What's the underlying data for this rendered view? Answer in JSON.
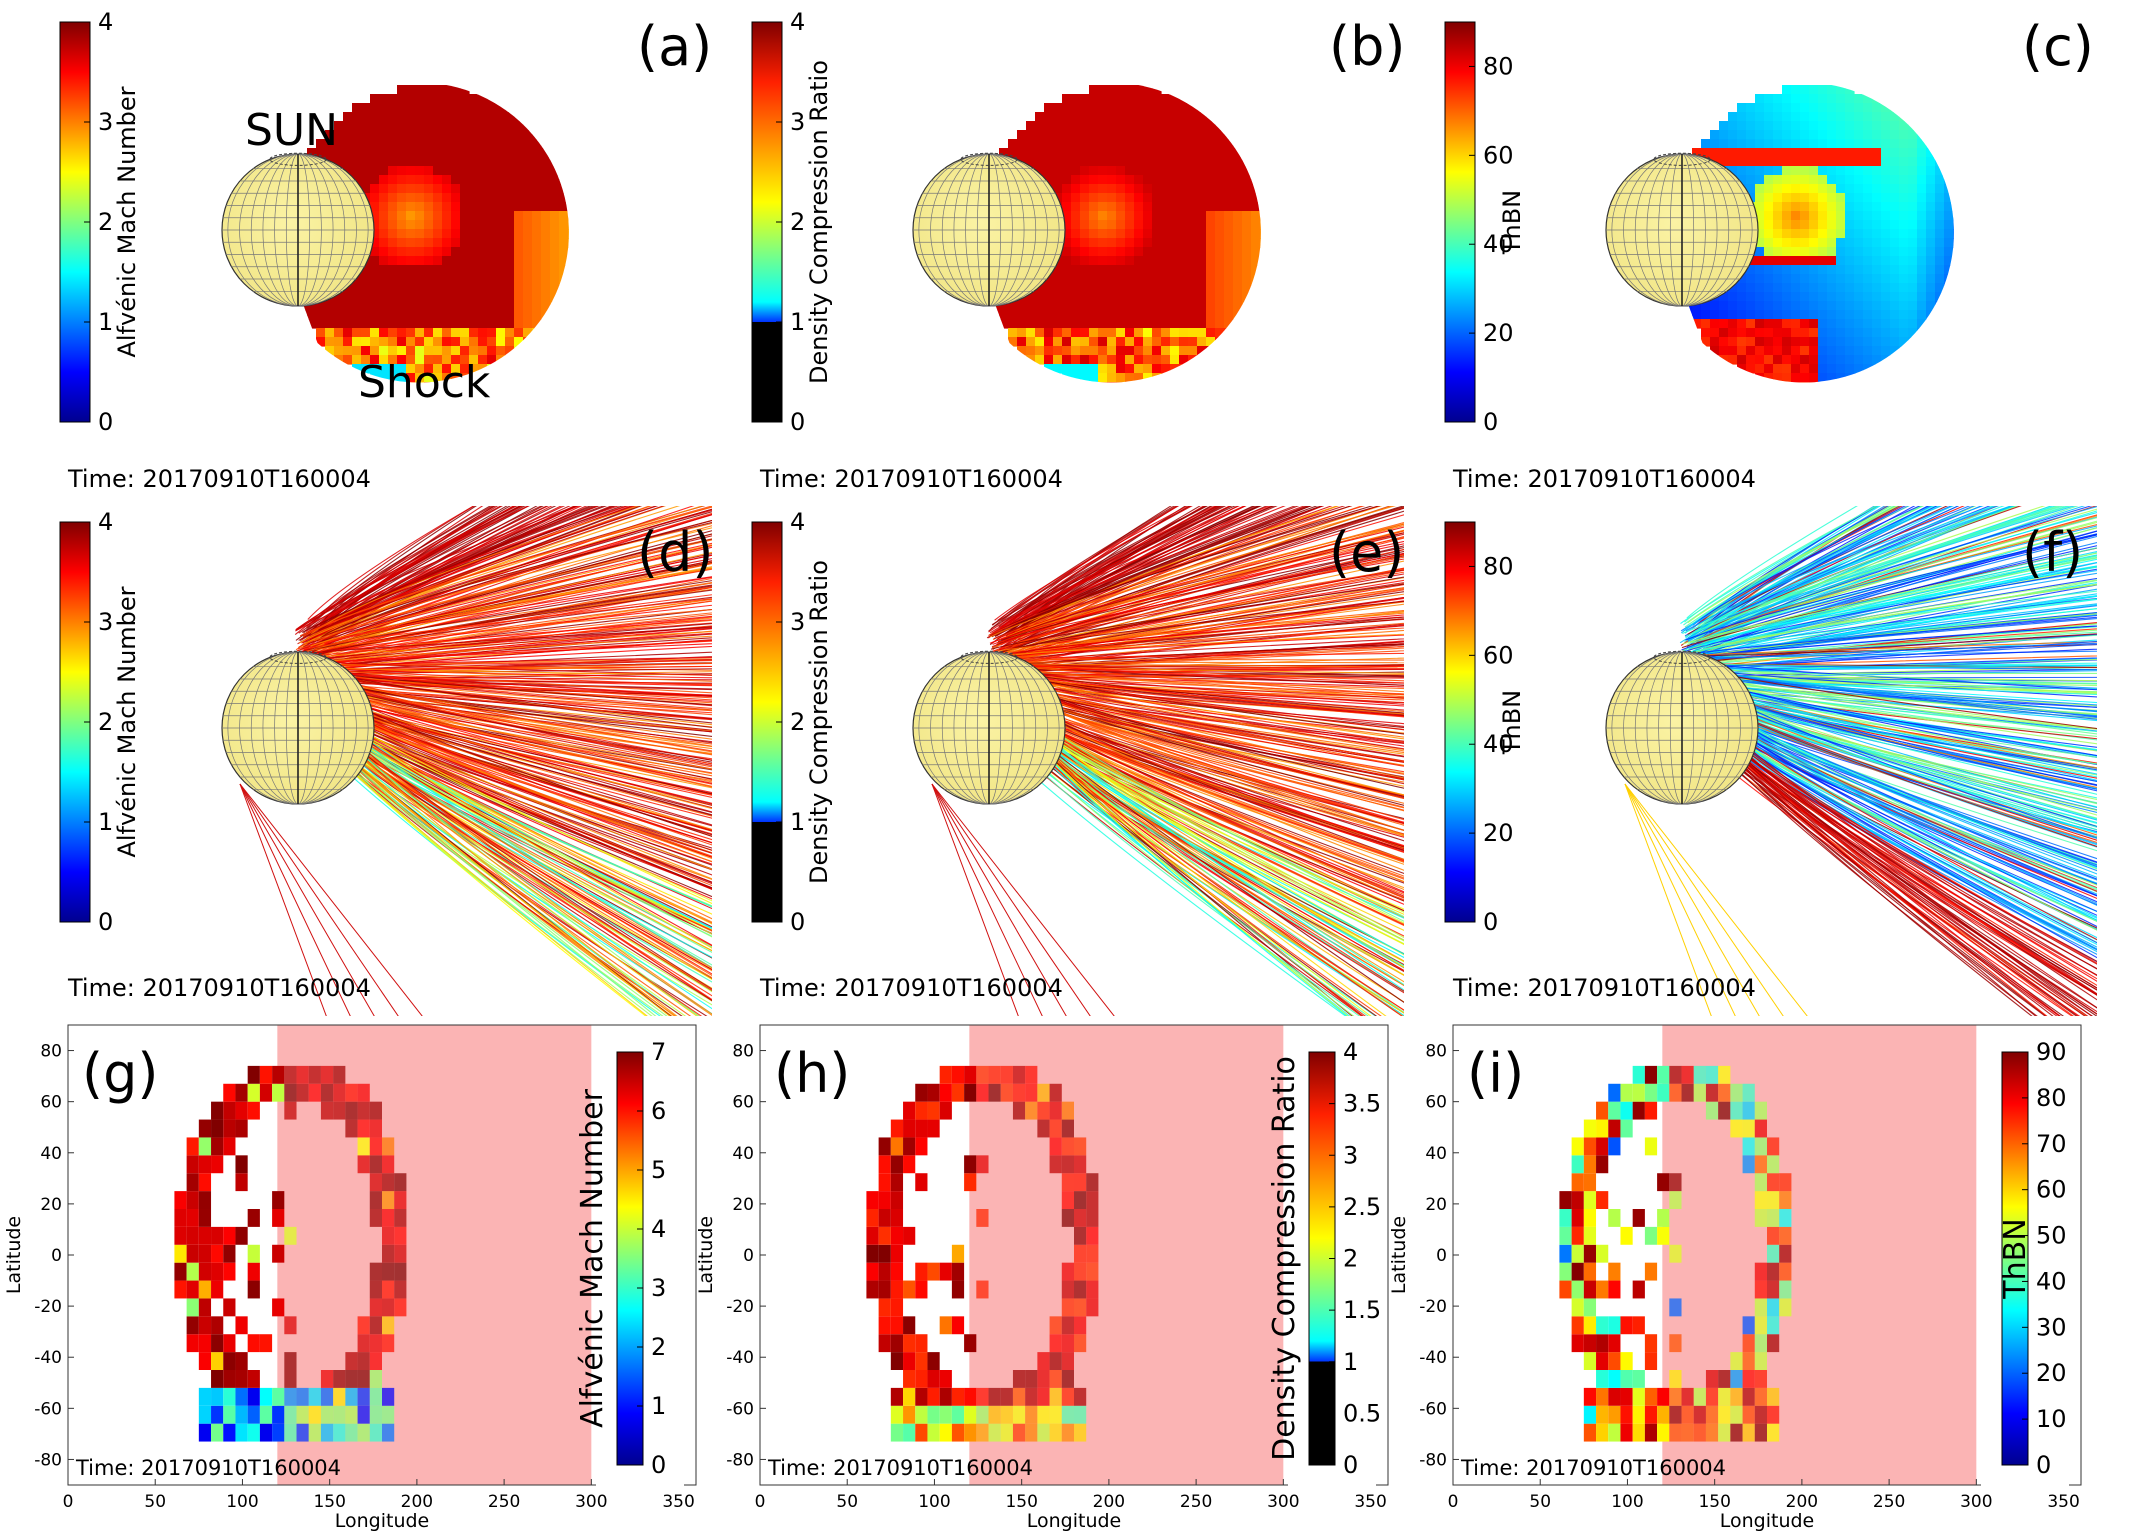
{
  "figure": {
    "time_label": "Time: 20170910T160004",
    "annotations": {
      "sun": "SUN",
      "shock": "Shock"
    },
    "panels": [
      {
        "id": "a",
        "letter": "(a)",
        "kind": "sphere",
        "colorbar": "mach"
      },
      {
        "id": "b",
        "letter": "(b)",
        "kind": "sphere",
        "colorbar": "density"
      },
      {
        "id": "c",
        "letter": "(c)",
        "kind": "sphere",
        "colorbar": "thbn"
      },
      {
        "id": "d",
        "letter": "(d)",
        "kind": "lines",
        "colorbar": "mach"
      },
      {
        "id": "e",
        "letter": "(e)",
        "kind": "lines",
        "colorbar": "density"
      },
      {
        "id": "f",
        "letter": "(f)",
        "kind": "lines",
        "colorbar": "thbn"
      },
      {
        "id": "g",
        "letter": "(g)",
        "kind": "map",
        "colorbar": "mach_map"
      },
      {
        "id": "h",
        "letter": "(h)",
        "kind": "map",
        "colorbar": "density_map"
      },
      {
        "id": "i",
        "letter": "(i)",
        "kind": "map",
        "colorbar": "thbn_map"
      }
    ]
  },
  "colorbars": {
    "mach": {
      "label": "Alfvénic Mach Number",
      "ticks": [
        "0",
        "1",
        "2",
        "3",
        "4"
      ],
      "range": [
        0,
        4
      ]
    },
    "density": {
      "label": "Density Compression Ratio",
      "ticks": [
        "0",
        "1",
        "2",
        "3",
        "4"
      ],
      "range": [
        0,
        4
      ],
      "black_below": 1
    },
    "thbn": {
      "label": "ThBN",
      "ticks": [
        "0",
        "20",
        "40",
        "60",
        "80"
      ],
      "range": [
        0,
        90
      ]
    },
    "mach_map": {
      "label": "Alfvénic Mach Number",
      "ticks": [
        "0",
        "1",
        "2",
        "3",
        "4",
        "5",
        "6",
        "7"
      ],
      "range": [
        0,
        7
      ]
    },
    "density_map": {
      "label": "Density Compression Ratio",
      "ticks": [
        "0",
        "0.5",
        "1",
        "1.5",
        "2",
        "2.5",
        "3",
        "3.5",
        "4"
      ],
      "range": [
        0,
        4
      ],
      "black_below": 1
    },
    "thbn_map": {
      "label": "ThBN",
      "ticks": [
        "0",
        "10",
        "20",
        "30",
        "40",
        "50",
        "60",
        "70",
        "80",
        "90"
      ],
      "range": [
        0,
        90
      ]
    }
  },
  "chart_data": {
    "type": "heatmap",
    "xlabel": "Longitude",
    "ylabel": "Latitude",
    "xlim": [
      0,
      360
    ],
    "ylim": [
      -90,
      90
    ],
    "xticks": [
      "0",
      "50",
      "100",
      "150",
      "200",
      "250",
      "300",
      "350"
    ],
    "yticks": [
      "80",
      "60",
      "40",
      "20",
      "0",
      "-20",
      "-40",
      "-60",
      "-80"
    ],
    "shaded_longitude_range": [
      120,
      300
    ],
    "shade_color": "#fbb4b4",
    "cell_size_deg": [
      7,
      7
    ],
    "shock_region": {
      "center_lon": 125,
      "center_lat": 0,
      "half_width_lon": 62,
      "half_height_lat": 72
    }
  }
}
